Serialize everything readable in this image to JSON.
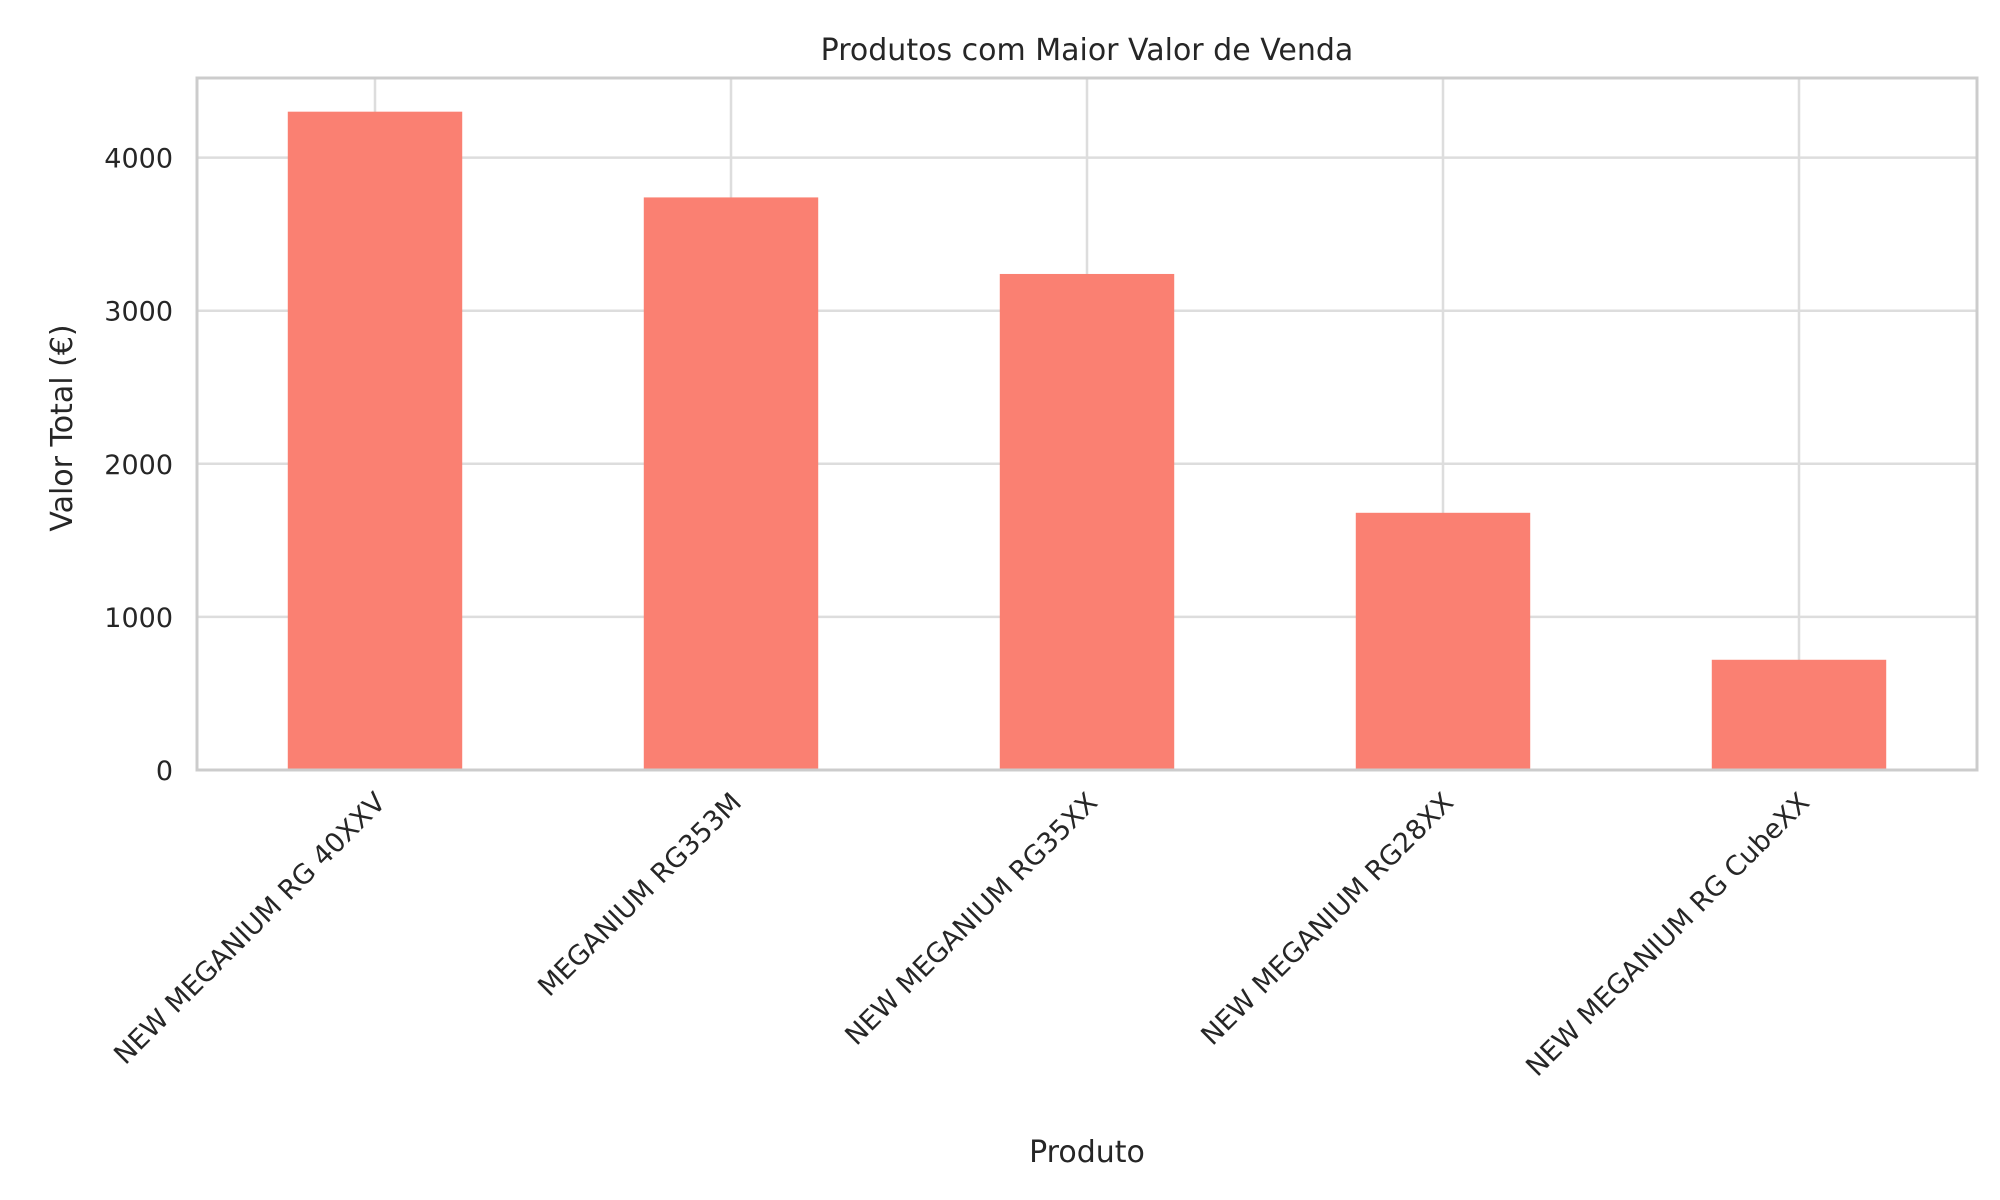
{
  "chart_data": {
    "type": "bar",
    "title": "Produtos com Maior Valor de Venda",
    "xlabel": "Produto",
    "ylabel": "Valor Total (€)",
    "categories": [
      "NEW MEGANIUM RG 40XXV",
      "MEGANIUM RG353M",
      "NEW MEGANIUM RG35XX",
      "NEW MEGANIUM RG28XX",
      "NEW MEGANIUM RG CubeXX"
    ],
    "values": [
      4300,
      3740,
      3240,
      1680,
      720
    ],
    "ylim": [
      0,
      4520
    ],
    "yticks": [
      0,
      1000,
      2000,
      3000,
      4000
    ],
    "bar_color": "#fa8072",
    "grid": true,
    "legend": "none"
  }
}
